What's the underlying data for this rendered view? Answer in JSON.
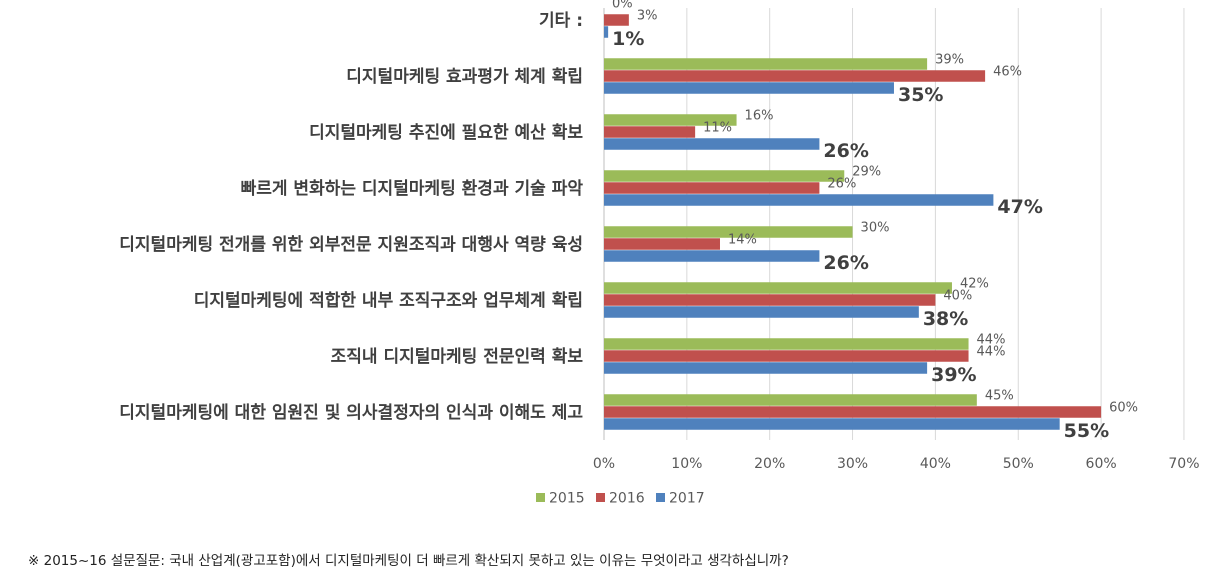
{
  "chart_data": {
    "type": "bar",
    "orientation": "horizontal",
    "categories": [
      "기타 :",
      "디지털마케팅 효과평가 체계 확립",
      "디지털마케팅 추진에 필요한 예산 확보",
      "빠르게 변화하는 디지털마케팅 환경과 기술 파악",
      "디지털마케팅 전개를 위한 외부전문 지원조직과 대행사 역량 육성",
      "디지털마케팅에 적합한 내부 조직구조와 업무체계 확립",
      "조직내 디지털마케팅 전문인력 확보",
      "디지털마케팅에 대한 임원진 및 의사결정자의 인식과 이해도 제고"
    ],
    "series": [
      {
        "name": "2015",
        "color": "#9BBB59",
        "values": [
          0,
          39,
          16,
          29,
          30,
          42,
          44,
          45
        ],
        "labels": [
          "0%",
          "39%",
          "16%",
          "29%",
          "30%",
          "42%",
          "44%",
          "45%"
        ]
      },
      {
        "name": "2016",
        "color": "#C0504D",
        "values": [
          3,
          46,
          11,
          26,
          14,
          40,
          44,
          60
        ],
        "labels": [
          "3%",
          "46%",
          "11%",
          "26%",
          "14%",
          "40%",
          "44%",
          "60%"
        ]
      },
      {
        "name": "2017",
        "color": "#4F81BD",
        "values": [
          0.5,
          35,
          26,
          47,
          26,
          38,
          39,
          55
        ],
        "labels": [
          "1%",
          "35%",
          "26%",
          "47%",
          "26%",
          "38%",
          "39%",
          "55%"
        ]
      }
    ],
    "xlim": [
      0,
      70
    ],
    "xticks": [
      0,
      10,
      20,
      30,
      40,
      50,
      60,
      70
    ],
    "xtick_labels": [
      "0%",
      "10%",
      "20%",
      "30%",
      "40%",
      "50%",
      "60%",
      "70%"
    ],
    "grid": "vertical",
    "legend": "bottom"
  },
  "footnote": "※ 2015~16 설문질문: 국내 산업계(광고포함)에서 디지털마케팅이 더 빠르게 확산되지 못하고 있는 이유는 무엇이라고 생각하십니까?"
}
